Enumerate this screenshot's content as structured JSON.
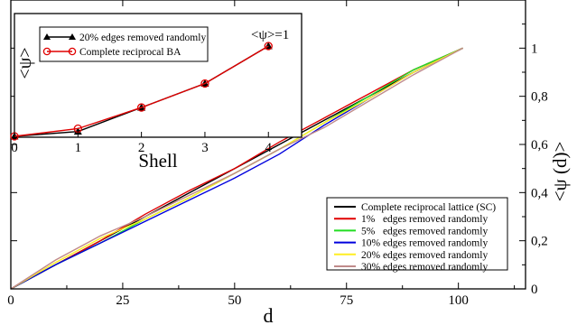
{
  "chart_data": [
    {
      "type": "line",
      "xlabel": "d",
      "ylabel": "<ψ (d)>",
      "xlim": [
        0,
        115
      ],
      "ylim": [
        0,
        1.2
      ],
      "xticks": [
        0,
        25,
        50,
        75,
        100
      ],
      "yticks": [
        0,
        0.2,
        0.4,
        0.6,
        0.8,
        1
      ],
      "xtick_labels": [
        "0",
        "25",
        "50",
        "75",
        "100"
      ],
      "ytick_labels": [
        "0",
        "0,2",
        "0,4",
        "0,6",
        "0,8",
        "1"
      ],
      "legend_position": "bottom-right",
      "series": [
        {
          "name": "Complete reciprocal lattice (SC)",
          "color": "#000000",
          "x": [
            0,
            10,
            20,
            30,
            40,
            50,
            60,
            70,
            80,
            90,
            101
          ],
          "y": [
            0,
            0.1,
            0.2,
            0.3,
            0.4,
            0.5,
            0.6,
            0.7,
            0.8,
            0.9,
            1.0
          ]
        },
        {
          "name": "1%   edges removed randomly",
          "color": "#e00000",
          "x": [
            0,
            10,
            20,
            30,
            40,
            50,
            60,
            70,
            80,
            90,
            101
          ],
          "y": [
            0,
            0.1,
            0.2,
            0.31,
            0.41,
            0.5,
            0.61,
            0.71,
            0.81,
            0.91,
            1.0
          ]
        },
        {
          "name": "5%   edges removed randomly",
          "color": "#22dd22",
          "x": [
            0,
            10,
            20,
            30,
            40,
            50,
            60,
            70,
            80,
            90,
            101
          ],
          "y": [
            0,
            0.1,
            0.19,
            0.29,
            0.38,
            0.48,
            0.58,
            0.69,
            0.8,
            0.91,
            1.0
          ]
        },
        {
          "name": "10% edges removed randomly",
          "color": "#0000dd",
          "x": [
            0,
            10,
            20,
            30,
            40,
            50,
            60,
            70,
            80,
            90,
            101
          ],
          "y": [
            0,
            0.1,
            0.19,
            0.28,
            0.37,
            0.46,
            0.56,
            0.68,
            0.79,
            0.9,
            1.0
          ]
        },
        {
          "name": "20% edges removed randomly",
          "color": "#ffee22",
          "x": [
            0,
            10,
            20,
            30,
            40,
            50,
            60,
            70,
            80,
            90,
            101
          ],
          "y": [
            0,
            0.11,
            0.21,
            0.29,
            0.38,
            0.48,
            0.58,
            0.69,
            0.79,
            0.9,
            1.0
          ]
        },
        {
          "name": "30% edges removed randomly",
          "color": "#c08a8a",
          "x": [
            0,
            10,
            20,
            30,
            40,
            50,
            60,
            70,
            80,
            90,
            101
          ],
          "y": [
            0,
            0.12,
            0.22,
            0.3,
            0.39,
            0.48,
            0.58,
            0.67,
            0.78,
            0.89,
            1.0
          ]
        }
      ]
    },
    {
      "type": "line",
      "xlabel": "Shell",
      "ylabel": "<ψ>",
      "annotation": "<ψ>=1",
      "xlim": [
        0,
        4.5
      ],
      "ylim": [
        0,
        1
      ],
      "xticks": [
        0,
        1,
        2,
        3,
        4
      ],
      "xtick_labels": [
        "0",
        "1",
        "2",
        "3",
        "4"
      ],
      "legend_position": "top-left",
      "series": [
        {
          "name": "20% edges removed randomly",
          "color": "#000000",
          "marker": "filled-triangle",
          "x": [
            0,
            1,
            2,
            3,
            4
          ],
          "y": [
            0.0,
            0.05,
            0.3,
            0.55,
            0.94
          ]
        },
        {
          "name": "Complete reciprocal BA",
          "color": "#e00000",
          "marker": "open-circle",
          "x": [
            0,
            1,
            2,
            3,
            4
          ],
          "y": [
            0.0,
            0.08,
            0.3,
            0.55,
            0.94
          ]
        }
      ]
    }
  ]
}
